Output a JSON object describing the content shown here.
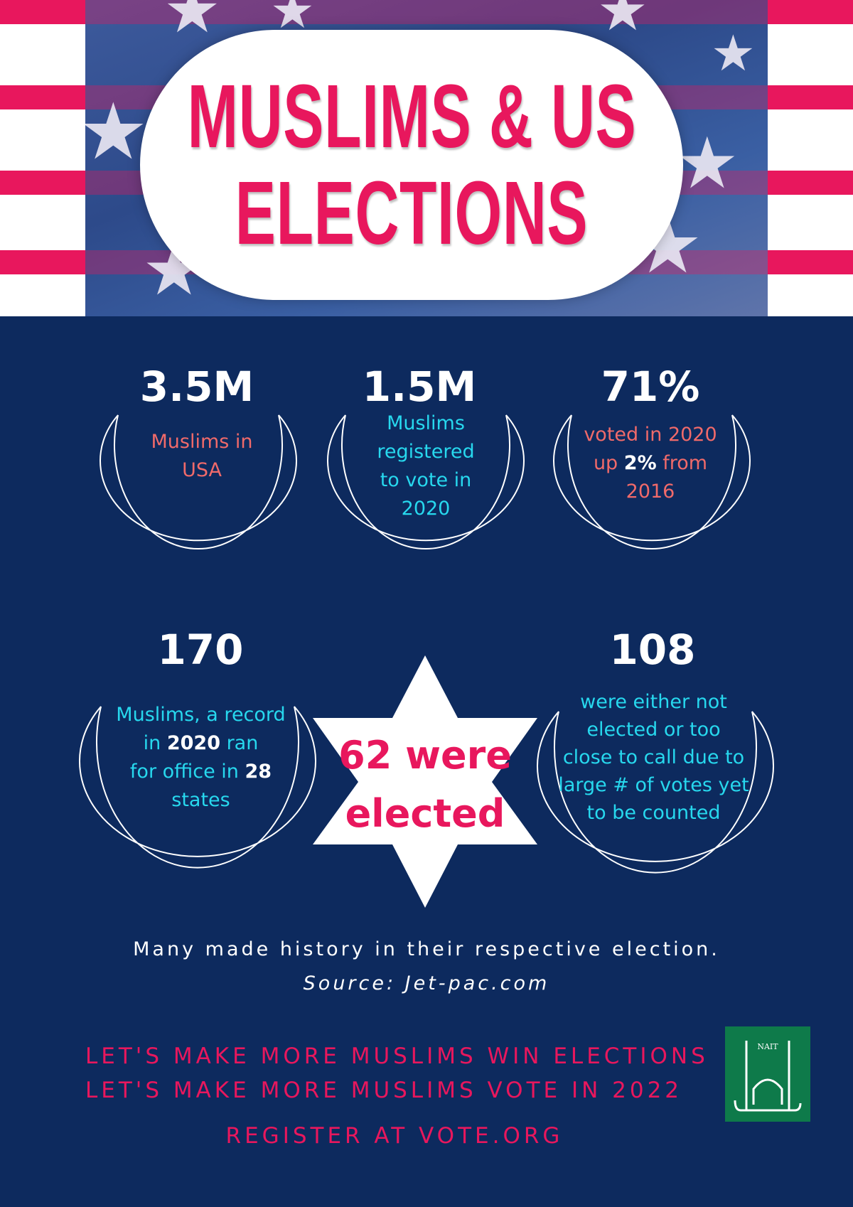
{
  "header": {
    "title_line1": "MUSLIMS & US",
    "title_line2": "ELECTIONS"
  },
  "stats_top": [
    {
      "number": "3.5M",
      "desc": [
        "Muslims in",
        "USA"
      ]
    },
    {
      "number": "1.5M",
      "desc": [
        "Muslims",
        "registered",
        "to vote in",
        "2020"
      ]
    },
    {
      "number": "71%",
      "desc_line1": "voted in 2020",
      "desc_line2_a": "up ",
      "desc_line2_b": "2%",
      "desc_line2_c": " from",
      "desc_line3": "2016"
    }
  ],
  "stats_bottom": {
    "left": {
      "number": "170",
      "line1": "Muslims, a record",
      "line2_a": "in ",
      "line2_b": "2020",
      "line2_c": " ran",
      "line3_a": "for office in ",
      "line3_b": "28",
      "line4": "states"
    },
    "center": {
      "line1": "62 were",
      "line2": "elected"
    },
    "right": {
      "number": "108",
      "desc": [
        "were either not",
        "elected or too",
        "close to call due to",
        "large # of votes yet",
        "to be counted"
      ]
    }
  },
  "footer": {
    "note": "Many made history in their respective election.",
    "source_label": "Source",
    "source_value": ": Jet-pac.com",
    "cta1": "LET'S MAKE MORE MUSLIMS WIN ELECTIONS",
    "cta2": "LET'S MAKE MORE MUSLIMS VOTE IN 2022",
    "cta3": "REGISTER AT VOTE.ORG",
    "logo_text": "NAIT"
  },
  "colors": {
    "background": "#0d2a5e",
    "accent_pink": "#e8175d",
    "salmon": "#f06a6a",
    "cyan": "#27d8ee",
    "logo_green": "#0e7a4a"
  },
  "icons": [
    "star-icon",
    "crescent-moon-icon",
    "six-point-star-icon",
    "mosque-logo-icon"
  ]
}
